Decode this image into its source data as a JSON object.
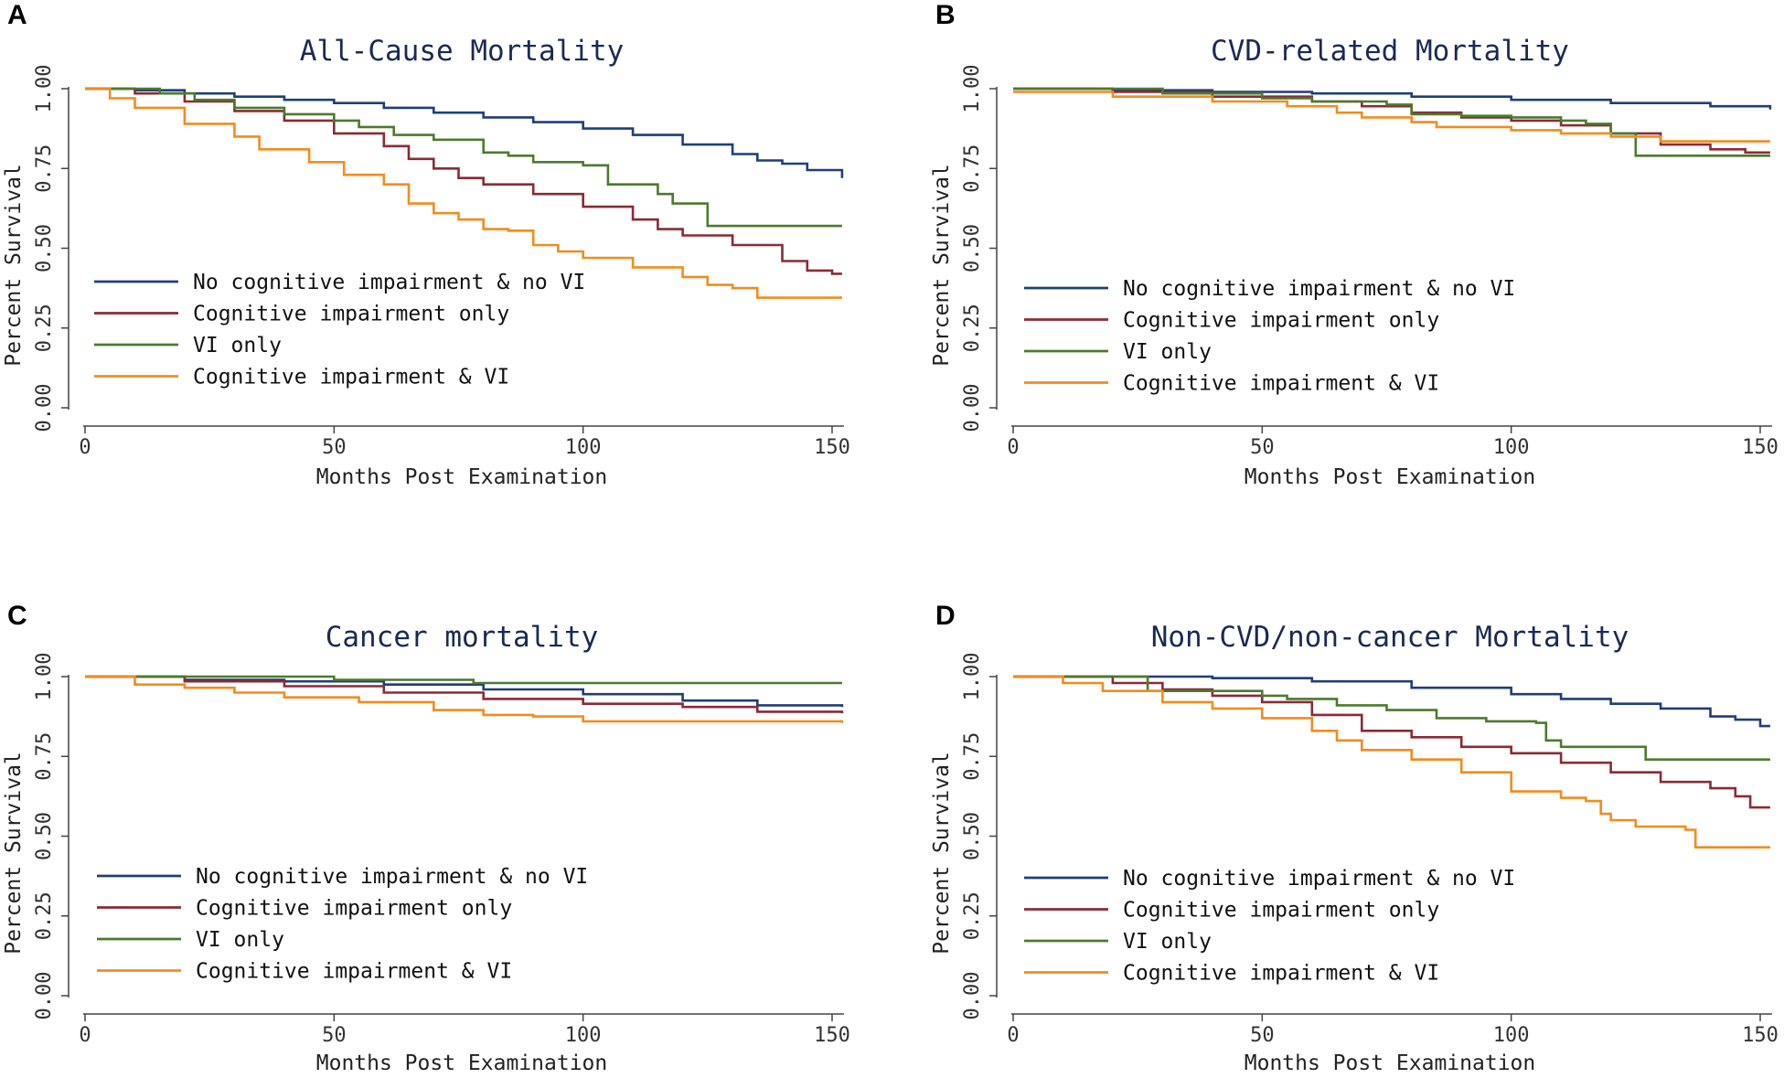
{
  "chart_data": [
    {
      "type": "line",
      "panel": "A",
      "title": "All-Cause Mortality",
      "xlabel": "Months Post Examination",
      "ylabel": "Percent Survival",
      "xticks": [
        "0",
        "50",
        "100",
        "150"
      ],
      "yticks": [
        "0.00",
        "0.25",
        "0.50",
        "0.75",
        "1.00"
      ],
      "xlim": [
        0,
        152
      ],
      "ylim": [
        0,
        1
      ],
      "legend": "inside-lower-left",
      "series": [
        {
          "name": "No cognitive impairment & no VI",
          "color": "#1f3f7a",
          "points": [
            [
              0,
              1.0
            ],
            [
              10,
              0.995
            ],
            [
              20,
              0.985
            ],
            [
              30,
              0.975
            ],
            [
              40,
              0.965
            ],
            [
              50,
              0.955
            ],
            [
              60,
              0.94
            ],
            [
              70,
              0.925
            ],
            [
              80,
              0.91
            ],
            [
              90,
              0.895
            ],
            [
              100,
              0.875
            ],
            [
              110,
              0.855
            ],
            [
              120,
              0.825
            ],
            [
              130,
              0.795
            ],
            [
              135,
              0.775
            ],
            [
              140,
              0.765
            ],
            [
              145,
              0.745
            ],
            [
              152,
              0.72
            ]
          ]
        },
        {
          "name": "Cognitive impairment only",
          "color": "#8b2a36",
          "points": [
            [
              0,
              1.0
            ],
            [
              10,
              0.985
            ],
            [
              20,
              0.96
            ],
            [
              30,
              0.93
            ],
            [
              40,
              0.9
            ],
            [
              50,
              0.86
            ],
            [
              60,
              0.82
            ],
            [
              65,
              0.78
            ],
            [
              70,
              0.75
            ],
            [
              75,
              0.72
            ],
            [
              80,
              0.7
            ],
            [
              90,
              0.67
            ],
            [
              100,
              0.63
            ],
            [
              110,
              0.59
            ],
            [
              115,
              0.56
            ],
            [
              120,
              0.54
            ],
            [
              130,
              0.51
            ],
            [
              140,
              0.46
            ],
            [
              145,
              0.43
            ],
            [
              150,
              0.42
            ],
            [
              152,
              0.42
            ]
          ]
        },
        {
          "name": "VI only",
          "color": "#4b7b2b",
          "points": [
            [
              0,
              1.0
            ],
            [
              12,
              1.0
            ],
            [
              15,
              0.985
            ],
            [
              22,
              0.965
            ],
            [
              30,
              0.94
            ],
            [
              40,
              0.92
            ],
            [
              50,
              0.9
            ],
            [
              55,
              0.88
            ],
            [
              62,
              0.855
            ],
            [
              70,
              0.84
            ],
            [
              80,
              0.8
            ],
            [
              85,
              0.79
            ],
            [
              90,
              0.77
            ],
            [
              100,
              0.76
            ],
            [
              105,
              0.7
            ],
            [
              115,
              0.67
            ],
            [
              118,
              0.64
            ],
            [
              125,
              0.57
            ],
            [
              152,
              0.57
            ]
          ]
        },
        {
          "name": "Cognitive impairment & VI",
          "color": "#f28c1c",
          "points": [
            [
              0,
              1.0
            ],
            [
              5,
              0.97
            ],
            [
              10,
              0.94
            ],
            [
              20,
              0.89
            ],
            [
              30,
              0.85
            ],
            [
              35,
              0.81
            ],
            [
              45,
              0.77
            ],
            [
              52,
              0.73
            ],
            [
              60,
              0.7
            ],
            [
              65,
              0.64
            ],
            [
              70,
              0.61
            ],
            [
              75,
              0.59
            ],
            [
              80,
              0.56
            ],
            [
              85,
              0.555
            ],
            [
              90,
              0.51
            ],
            [
              95,
              0.49
            ],
            [
              100,
              0.47
            ],
            [
              110,
              0.44
            ],
            [
              120,
              0.41
            ],
            [
              125,
              0.385
            ],
            [
              130,
              0.375
            ],
            [
              135,
              0.345
            ],
            [
              152,
              0.345
            ]
          ]
        }
      ],
      "legend_order": [
        0,
        1,
        2,
        3
      ]
    },
    {
      "type": "line",
      "panel": "B",
      "title": "CVD-related Mortality",
      "xlabel": "Months Post Examination",
      "ylabel": "Percent Survival",
      "xticks": [
        "0",
        "50",
        "100",
        "150"
      ],
      "yticks": [
        "0.00",
        "0.25",
        "0.50",
        "0.75",
        "1.00"
      ],
      "xlim": [
        0,
        152
      ],
      "ylim": [
        0,
        1
      ],
      "legend": "inside-lower-left",
      "series": [
        {
          "name": "No cognitive impairment & no VI",
          "color": "#1f3f7a",
          "points": [
            [
              0,
              1.0
            ],
            [
              20,
              0.995
            ],
            [
              40,
              0.99
            ],
            [
              60,
              0.985
            ],
            [
              80,
              0.975
            ],
            [
              100,
              0.965
            ],
            [
              120,
              0.955
            ],
            [
              140,
              0.945
            ],
            [
              152,
              0.935
            ]
          ]
        },
        {
          "name": "Cognitive impairment only",
          "color": "#8b2a36",
          "points": [
            [
              0,
              1.0
            ],
            [
              20,
              0.99
            ],
            [
              40,
              0.975
            ],
            [
              60,
              0.96
            ],
            [
              70,
              0.945
            ],
            [
              80,
              0.925
            ],
            [
              90,
              0.91
            ],
            [
              100,
              0.9
            ],
            [
              110,
              0.885
            ],
            [
              120,
              0.86
            ],
            [
              130,
              0.825
            ],
            [
              140,
              0.81
            ],
            [
              147,
              0.8
            ],
            [
              152,
              0.8
            ]
          ]
        },
        {
          "name": "VI only",
          "color": "#4b7b2b",
          "points": [
            [
              0,
              1.0
            ],
            [
              20,
              1.0
            ],
            [
              30,
              0.985
            ],
            [
              50,
              0.97
            ],
            [
              60,
              0.96
            ],
            [
              75,
              0.95
            ],
            [
              80,
              0.92
            ],
            [
              90,
              0.915
            ],
            [
              100,
              0.91
            ],
            [
              110,
              0.9
            ],
            [
              115,
              0.89
            ],
            [
              120,
              0.86
            ],
            [
              125,
              0.79
            ],
            [
              152,
              0.79
            ]
          ]
        },
        {
          "name": "Cognitive impairment & VI",
          "color": "#f28c1c",
          "points": [
            [
              0,
              0.99
            ],
            [
              20,
              0.975
            ],
            [
              40,
              0.96
            ],
            [
              55,
              0.945
            ],
            [
              65,
              0.925
            ],
            [
              70,
              0.91
            ],
            [
              80,
              0.895
            ],
            [
              85,
              0.88
            ],
            [
              100,
              0.87
            ],
            [
              110,
              0.86
            ],
            [
              120,
              0.85
            ],
            [
              130,
              0.835
            ],
            [
              152,
              0.835
            ]
          ]
        }
      ],
      "legend_order": [
        0,
        1,
        2,
        3
      ]
    },
    {
      "type": "line",
      "panel": "C",
      "title": "Cancer mortality",
      "xlabel": "Months Post Examination",
      "ylabel": "Percent Survival",
      "xticks": [
        "0",
        "50",
        "100",
        "150"
      ],
      "yticks": [
        "0.00",
        "0.25",
        "0.50",
        "0.75",
        "1.00"
      ],
      "xlim": [
        0,
        152
      ],
      "ylim": [
        0,
        1
      ],
      "legend": "inside-lower-left",
      "series": [
        {
          "name": "No cognitive impairment & no VI",
          "color": "#1f3f7a",
          "points": [
            [
              0,
              1.0
            ],
            [
              20,
              0.99
            ],
            [
              40,
              0.985
            ],
            [
              60,
              0.975
            ],
            [
              80,
              0.96
            ],
            [
              100,
              0.945
            ],
            [
              120,
              0.925
            ],
            [
              135,
              0.91
            ],
            [
              152,
              0.905
            ]
          ]
        },
        {
          "name": "Cognitive impairment only",
          "color": "#8b2a36",
          "points": [
            [
              0,
              1.0
            ],
            [
              20,
              0.985
            ],
            [
              40,
              0.97
            ],
            [
              60,
              0.95
            ],
            [
              80,
              0.93
            ],
            [
              100,
              0.915
            ],
            [
              120,
              0.905
            ],
            [
              135,
              0.89
            ],
            [
              152,
              0.885
            ]
          ]
        },
        {
          "name": "VI only",
          "color": "#4b7b2b",
          "points": [
            [
              0,
              1.0
            ],
            [
              48,
              1.0
            ],
            [
              50,
              0.99
            ],
            [
              78,
              0.98
            ],
            [
              152,
              0.98
            ]
          ]
        },
        {
          "name": "Cognitive impairment & VI",
          "color": "#f28c1c",
          "points": [
            [
              0,
              1.0
            ],
            [
              10,
              0.975
            ],
            [
              20,
              0.965
            ],
            [
              30,
              0.95
            ],
            [
              40,
              0.935
            ],
            [
              55,
              0.92
            ],
            [
              70,
              0.895
            ],
            [
              80,
              0.88
            ],
            [
              90,
              0.875
            ],
            [
              100,
              0.86
            ],
            [
              152,
              0.855
            ]
          ]
        }
      ],
      "legend_order": [
        0,
        1,
        2,
        3
      ]
    },
    {
      "type": "line",
      "panel": "D",
      "title": "Non-CVD/non-cancer Mortality",
      "xlabel": "Months Post Examination",
      "ylabel": "Percent Survival",
      "xticks": [
        "0",
        "50",
        "100",
        "150"
      ],
      "yticks": [
        "0.00",
        "0.25",
        "0.50",
        "0.75",
        "1.00"
      ],
      "xlim": [
        0,
        152
      ],
      "ylim": [
        0,
        1
      ],
      "legend": "inside-lower-left",
      "series": [
        {
          "name": "No cognitive impairment & no VI",
          "color": "#1f3f7a",
          "points": [
            [
              0,
              1.0
            ],
            [
              20,
              1.0
            ],
            [
              40,
              0.995
            ],
            [
              60,
              0.985
            ],
            [
              80,
              0.965
            ],
            [
              100,
              0.945
            ],
            [
              110,
              0.93
            ],
            [
              120,
              0.915
            ],
            [
              130,
              0.9
            ],
            [
              140,
              0.875
            ],
            [
              145,
              0.865
            ],
            [
              150,
              0.845
            ],
            [
              152,
              0.845
            ]
          ]
        },
        {
          "name": "Cognitive impairment only",
          "color": "#8b2a36",
          "points": [
            [
              0,
              1.0
            ],
            [
              20,
              0.98
            ],
            [
              30,
              0.96
            ],
            [
              40,
              0.94
            ],
            [
              50,
              0.92
            ],
            [
              60,
              0.88
            ],
            [
              70,
              0.83
            ],
            [
              80,
              0.81
            ],
            [
              90,
              0.78
            ],
            [
              100,
              0.76
            ],
            [
              110,
              0.73
            ],
            [
              120,
              0.7
            ],
            [
              130,
              0.67
            ],
            [
              140,
              0.65
            ],
            [
              145,
              0.625
            ],
            [
              148,
              0.59
            ],
            [
              152,
              0.59
            ]
          ]
        },
        {
          "name": "VI only",
          "color": "#4b7b2b",
          "points": [
            [
              0,
              1.0
            ],
            [
              22,
              1.0
            ],
            [
              27,
              0.955
            ],
            [
              50,
              0.94
            ],
            [
              55,
              0.93
            ],
            [
              65,
              0.91
            ],
            [
              75,
              0.895
            ],
            [
              85,
              0.87
            ],
            [
              95,
              0.86
            ],
            [
              105,
              0.855
            ],
            [
              107,
              0.8
            ],
            [
              110,
              0.78
            ],
            [
              125,
              0.78
            ],
            [
              127,
              0.74
            ],
            [
              152,
              0.74
            ]
          ]
        },
        {
          "name": "Cognitive impairment & VI",
          "color": "#f28c1c",
          "points": [
            [
              0,
              1.0
            ],
            [
              10,
              0.98
            ],
            [
              18,
              0.955
            ],
            [
              30,
              0.92
            ],
            [
              40,
              0.9
            ],
            [
              50,
              0.87
            ],
            [
              60,
              0.83
            ],
            [
              65,
              0.8
            ],
            [
              70,
              0.77
            ],
            [
              80,
              0.74
            ],
            [
              90,
              0.7
            ],
            [
              100,
              0.64
            ],
            [
              110,
              0.62
            ],
            [
              115,
              0.61
            ],
            [
              118,
              0.57
            ],
            [
              120,
              0.55
            ],
            [
              125,
              0.53
            ],
            [
              135,
              0.52
            ],
            [
              137,
              0.465
            ],
            [
              152,
              0.465
            ]
          ]
        }
      ],
      "legend_order": [
        0,
        1,
        2,
        3
      ]
    }
  ]
}
